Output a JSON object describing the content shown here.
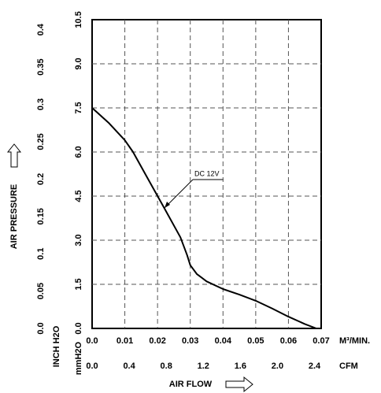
{
  "chart_data": {
    "type": "line",
    "x_label": "AIR FLOW",
    "y_label": "AIR PRESSURE",
    "x_unit": "M³/MIN.",
    "x2_unit": "CFM",
    "y_unit": "mmH2O",
    "y2_unit": "INCH H2O",
    "x": [
      0,
      0.005,
      0.01,
      0.0125,
      0.017,
      0.022,
      0.027,
      0.029,
      0.03,
      0.032,
      0.035,
      0.04,
      0.045,
      0.05,
      0.055,
      0.06,
      0.065,
      0.0685
    ],
    "series": [
      {
        "name": "DC 12V",
        "color": "#000000",
        "values": [
          7.5,
          7.0,
          6.4,
          6.0,
          5.1,
          4.1,
          3.1,
          2.5,
          2.15,
          1.85,
          1.6,
          1.34,
          1.15,
          0.94,
          0.68,
          0.4,
          0.15,
          0
        ]
      }
    ],
    "xlim": [
      0,
      0.07
    ],
    "xticks": [
      {
        "value": 0,
        "label": "0.0"
      },
      0.01,
      0.02,
      0.03,
      0.04,
      0.05,
      0.06,
      0.07
    ],
    "x2lim": [
      0,
      2.472
    ],
    "x2ticks": [
      {
        "value": 0,
        "label": "0.0"
      },
      0.4,
      0.8,
      1.2,
      1.6,
      {
        "value": 2,
        "label": "2.0"
      },
      2.4
    ],
    "ylim": [
      0,
      10.5
    ],
    "yticks": [
      {
        "value": 0,
        "label": "0.0"
      },
      1.5,
      {
        "value": 3,
        "label": "3.0"
      },
      4.5,
      {
        "value": 6,
        "label": "6.0"
      },
      7.5,
      {
        "value": 9,
        "label": "9.0"
      },
      10.5
    ],
    "y2lim": [
      0,
      0.4134
    ],
    "y2ticks": [
      {
        "value": 0,
        "label": "0.0"
      },
      0.05,
      0.1,
      0.15,
      0.2,
      0.25,
      0.3,
      0.35,
      0.4
    ],
    "grid": true
  }
}
